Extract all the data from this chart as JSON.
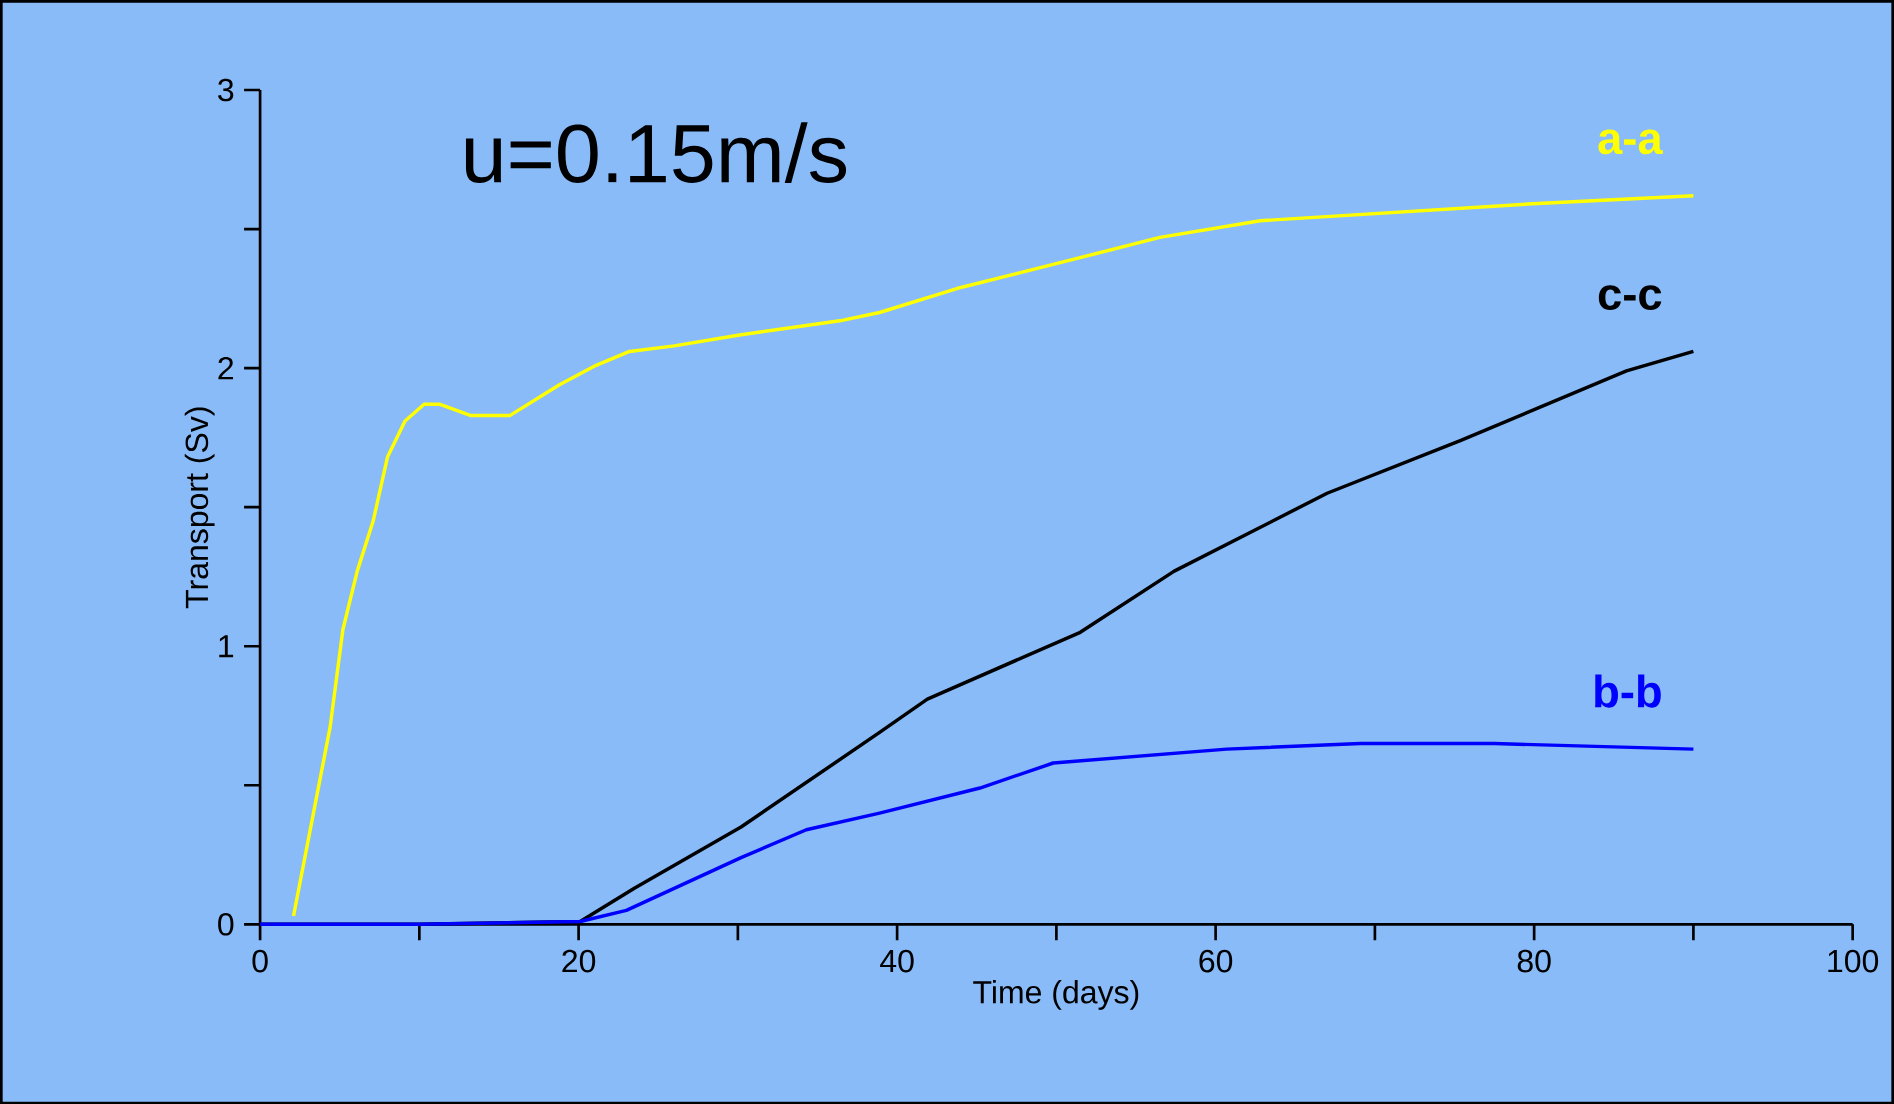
{
  "chart_data": {
    "type": "line",
    "xlabel": "Time (days)",
    "ylabel": "Transport (Sv)",
    "annotations": [
      "u=0.15m/s"
    ],
    "xlim": [
      0,
      100
    ],
    "xticks": [
      0,
      20,
      40,
      60,
      80,
      100
    ],
    "ylim": [
      0,
      3
    ],
    "yticks": [
      0,
      1,
      2,
      3
    ],
    "grid": false,
    "legend": false,
    "marker": "none",
    "line_style": "solid",
    "series": [
      {
        "name": "a-a",
        "color": "#ffff00",
        "x": [
          2.1,
          3.35,
          4.4,
          5.2,
          6.1,
          7.1,
          8.0,
          9.1,
          10.3,
          11.3,
          13.2,
          15.7,
          18.8,
          21.1,
          23.2,
          26.0,
          30.2,
          36.4,
          38.9,
          44.0,
          50.3,
          56.5,
          62.8,
          71.2,
          79.6,
          90.0
        ],
        "values": [
          0.03,
          0.4,
          0.71,
          1.06,
          1.27,
          1.45,
          1.68,
          1.81,
          1.87,
          1.87,
          1.83,
          1.83,
          1.94,
          2.01,
          2.06,
          2.08,
          2.12,
          2.17,
          2.2,
          2.29,
          2.38,
          2.47,
          2.53,
          2.56,
          2.59,
          2.62
        ]
      },
      {
        "name": "c-c",
        "color": "#000000",
        "x": [
          0,
          10,
          20.1,
          23.5,
          30.2,
          38.9,
          41.9,
          51.5,
          57.4,
          67.0,
          75.4,
          85.8,
          90.0
        ],
        "values": [
          0,
          0,
          0.01,
          0.13,
          0.35,
          0.69,
          0.81,
          1.05,
          1.27,
          1.55,
          1.74,
          1.99,
          2.06
        ]
      },
      {
        "name": "b-b",
        "color": "#0000ff",
        "x": [
          0,
          10,
          20.1,
          23.0,
          30.2,
          34.3,
          38.9,
          45.2,
          49.8,
          60.7,
          69.1,
          77.5,
          90.0
        ],
        "values": [
          0,
          0,
          0.01,
          0.05,
          0.24,
          0.34,
          0.4,
          0.49,
          0.58,
          0.63,
          0.65,
          0.65,
          0.63
        ]
      }
    ]
  }
}
